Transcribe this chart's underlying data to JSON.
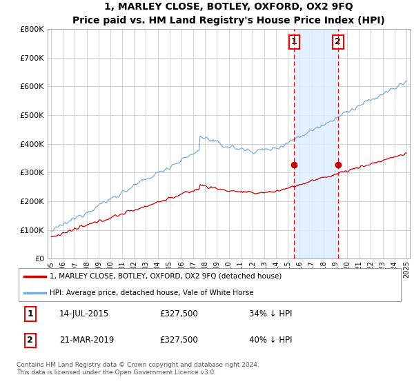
{
  "title": "1, MARLEY CLOSE, BOTLEY, OXFORD, OX2 9FQ",
  "subtitle": "Price paid vs. HM Land Registry's House Price Index (HPI)",
  "ylim": [
    0,
    800000
  ],
  "yticks": [
    0,
    100000,
    200000,
    300000,
    400000,
    500000,
    600000,
    700000,
    800000
  ],
  "ytick_labels": [
    "£0",
    "£100K",
    "£200K",
    "£300K",
    "£400K",
    "£500K",
    "£600K",
    "£700K",
    "£800K"
  ],
  "hpi_color": "#7aabdd",
  "price_color": "#cc0000",
  "point1_year": 2015.53,
  "point1_price": 327500,
  "point1_label": "1",
  "point1_date": "14-JUL-2015",
  "point1_amount": "£327,500",
  "point1_note": "34% ↓ HPI",
  "point2_year": 2019.22,
  "point2_price": 327500,
  "point2_label": "2",
  "point2_date": "21-MAR-2019",
  "point2_amount": "£327,500",
  "point2_note": "40% ↓ HPI",
  "legend_line1": "1, MARLEY CLOSE, BOTLEY, OXFORD, OX2 9FQ (detached house)",
  "legend_line2": "HPI: Average price, detached house, Vale of White Horse",
  "footer": "Contains HM Land Registry data © Crown copyright and database right 2024.\nThis data is licensed under the Open Government Licence v3.0.",
  "background_color": "#ffffff",
  "grid_color": "#cccccc",
  "shade_color": "#ddeeff",
  "xlim_left": 1994.7,
  "xlim_right": 2025.3
}
